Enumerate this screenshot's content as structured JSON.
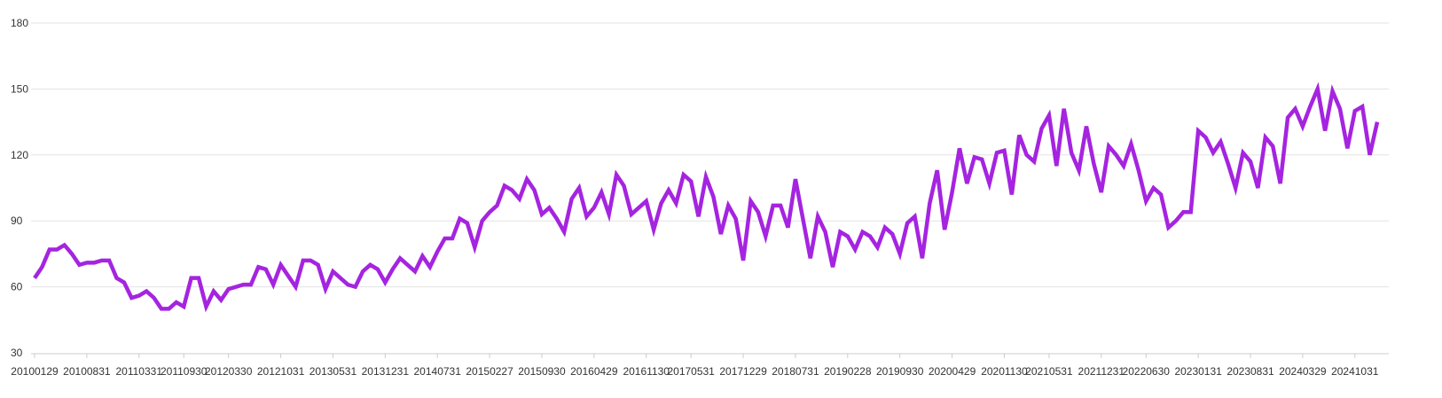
{
  "chart_data": {
    "type": "line",
    "title": "",
    "xlabel": "",
    "ylabel": "",
    "ylim": [
      30,
      180
    ],
    "y_ticks": [
      30,
      60,
      90,
      120,
      150,
      180
    ],
    "grid": "horizontal",
    "line_color": "#a524e0",
    "x_tick_labels": [
      "20100129",
      "20100831",
      "20110331",
      "20110930",
      "20120330",
      "20121031",
      "20130531",
      "20131231",
      "20140731",
      "20150227",
      "20150930",
      "20160429",
      "20161130",
      "20170531",
      "20171229",
      "20180731",
      "20190228",
      "20190930",
      "20200429",
      "20201130",
      "20210531",
      "20211231",
      "20220630",
      "20230131",
      "20230831",
      "20240329",
      "20241031"
    ],
    "x_tick_index": [
      0,
      7,
      14,
      20,
      26,
      33,
      40,
      47,
      54,
      61,
      68,
      75,
      82,
      88,
      95,
      102,
      109,
      116,
      123,
      130,
      136,
      143,
      149,
      156,
      163,
      170,
      177
    ],
    "series": [
      {
        "values": [
          64,
          69,
          77,
          77,
          79,
          75,
          70,
          71,
          71,
          72,
          72,
          64,
          62,
          55,
          56,
          58,
          55,
          50,
          50,
          53,
          51,
          64,
          64,
          51,
          58,
          54,
          59,
          60,
          61,
          61,
          69,
          68,
          61,
          70,
          65,
          60,
          72,
          72,
          70,
          59,
          67,
          64,
          61,
          60,
          67,
          70,
          68,
          62,
          68,
          73,
          70,
          67,
          74,
          69,
          76,
          82,
          82,
          91,
          89,
          78,
          90,
          94,
          97,
          106,
          104,
          100,
          109,
          104,
          93,
          96,
          91,
          85,
          100,
          105,
          92,
          96,
          103,
          93,
          111,
          106,
          93,
          96,
          99,
          86,
          98,
          104,
          98,
          111,
          108,
          92,
          110,
          101,
          84,
          97,
          91,
          72,
          99,
          94,
          83,
          97,
          97,
          87,
          109,
          91,
          73,
          92,
          85,
          69,
          85,
          83,
          77,
          85,
          83,
          78,
          87,
          84,
          75,
          89,
          92,
          73,
          98,
          113,
          86,
          103,
          123,
          107,
          119,
          118,
          107,
          121,
          122,
          102,
          129,
          120,
          117,
          132,
          138,
          115,
          141,
          121,
          113,
          133,
          116,
          103,
          124,
          120,
          115,
          125,
          113,
          99,
          105,
          102,
          87,
          90,
          94,
          94,
          131,
          128,
          121,
          126,
          116,
          105,
          121,
          117,
          105,
          128,
          124,
          107,
          137,
          141,
          133,
          142,
          150,
          131,
          149,
          141,
          123,
          140,
          142,
          120,
          135
        ]
      }
    ]
  }
}
